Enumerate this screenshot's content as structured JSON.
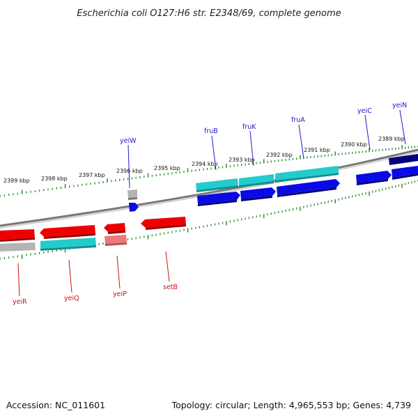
{
  "title": "Escherichia coli O127:H6 str. E2348/69, complete genome",
  "accession": "Accession: NC_011601",
  "topology": "Topology: circular; Length: 4,965,553 bp; Genes: 4,739",
  "colors": {
    "forward_gene": "#0a0ae6",
    "forward_gene_dark": "#000080",
    "reverse_gene": "#ee0000",
    "reverse_gene_light": "#e87a7a",
    "feature": "#22cccc",
    "pseudo": "#b4b4b4",
    "backbone": "#777777",
    "ticks": "#2a8a2a",
    "forward_label": "#1a1acc",
    "reverse_label": "#cc1010"
  },
  "scale": {
    "unit": "kbp",
    "labels": [
      "2399 kbp",
      "2398 kbp",
      "2397 kbp",
      "2396 kbp",
      "2395 kbp",
      "2394 kbp",
      "2393 kbp",
      "2392 kbp",
      "2391 kbp",
      "2390 kbp",
      "2389 kbp"
    ]
  },
  "forward_genes": [
    {
      "name": "yeiW",
      "start": 2396.3,
      "end": 2396.15
    },
    {
      "name": "fruB",
      "start": 2394.8,
      "end": 2394.0
    },
    {
      "name": "fruK",
      "start": 2394.0,
      "end": 2393.1
    },
    {
      "name": "fruA",
      "start": 2393.1,
      "end": 2391.3
    },
    {
      "name": "yeiC",
      "start": 2390.6,
      "end": 2389.6
    },
    {
      "name": "yeiN",
      "start": 2389.6,
      "end": 2388.2
    }
  ],
  "reverse_genes": [
    {
      "name": "yeiR",
      "start": 2400.0,
      "end": 2399.0
    },
    {
      "name": "yeiQ",
      "start": 2398.8,
      "end": 2397.3
    },
    {
      "name": "yeiP",
      "start": 2397.0,
      "end": 2396.4
    },
    {
      "name": "setB",
      "start": 2396.0,
      "end": 2394.8
    }
  ]
}
